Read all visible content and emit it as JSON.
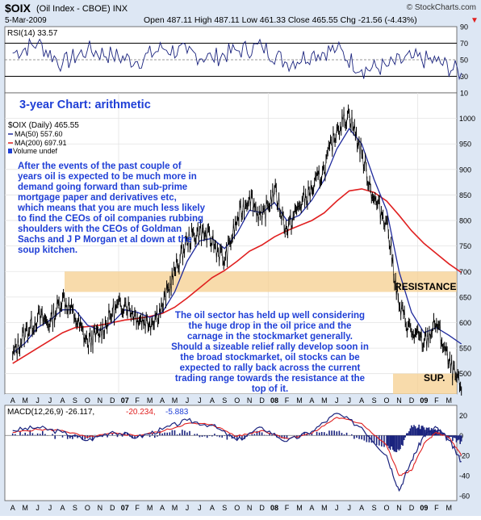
{
  "header": {
    "symbol": "$OIX",
    "symbol_desc": "(Oil Index - CBOE) INX",
    "brand": "© StockCharts.com",
    "date": "5-Mar-2009",
    "ohlc": "Open 487.11  High 487.11  Low 461.33  Close 465.55  Chg -21.56 (-4.43%)",
    "change_arrow": "▼"
  },
  "rsi_panel": {
    "label": "RSI(14) 33.57",
    "ticks": [
      "90",
      "70",
      "50",
      "30",
      "10"
    ]
  },
  "title": "3-year Chart: arithmetic",
  "price_legend": {
    "line1": "$OIX (Daily) 465.55",
    "line2": "MA(50) 557.60",
    "line3": "MA(200) 697.91",
    "line4": "Volume undef"
  },
  "annotations": {
    "note1": "After the events of the past couple of years oil is expected to be much more in demand going forward than sub-prime mortgage paper and derivatives etc, which means that you are much less likely to find the CEOs of oil companies rubbing shoulders with the CEOs of Goldman Sachs and J P Morgan et al down at the soup kitchen.",
    "note2": "The oil sector has held up well considering the huge drop in the oil price and the carnage in the stockmarket generally. Should a sizeable relief rally develop soon in the broad stockmarket, oil stocks can be expected to rally back across the current trading range towards the resistance at the top of it.",
    "resistance": "RESISTANCE",
    "support": "SUP."
  },
  "macd_panel": {
    "label_main": "MACD(12,26,9) -26.117,",
    "label_signal": "-20.234,",
    "label_hist": "-5.883",
    "ticks": [
      "20",
      "0",
      "-20",
      "-40",
      "-60"
    ]
  },
  "x_axis": {
    "labels": [
      "A",
      "M",
      "J",
      "J",
      "A",
      "S",
      "O",
      "N",
      "D",
      "07",
      "F",
      "M",
      "A",
      "M",
      "J",
      "J",
      "A",
      "S",
      "O",
      "N",
      "D",
      "08",
      "F",
      "M",
      "A",
      "M",
      "J",
      "J",
      "A",
      "S",
      "O",
      "N",
      "D",
      "09",
      "F",
      "M"
    ]
  },
  "chart_data": [
    {
      "type": "line",
      "title": "RSI(14) 33.57",
      "ylim": [
        10,
        90
      ],
      "reference_lines": [
        30,
        70
      ],
      "x": [
        "2006-03",
        "2006-05",
        "2006-07",
        "2006-09",
        "2006-11",
        "2007-01",
        "2007-03",
        "2007-05",
        "2007-07",
        "2007-09",
        "2007-11",
        "2008-01",
        "2008-03",
        "2008-05",
        "2008-07",
        "2008-09",
        "2008-11",
        "2009-01",
        "2009-03"
      ],
      "series": [
        {
          "values": [
            58,
            70,
            45,
            62,
            55,
            48,
            64,
            58,
            52,
            61,
            66,
            46,
            57,
            63,
            38,
            42,
            52,
            48,
            34
          ]
        }
      ]
    },
    {
      "type": "line",
      "title": "$OIX (Daily) 465.55",
      "ylim": [
        460,
        1050
      ],
      "x": [
        "2006-03",
        "2006-04",
        "2006-05",
        "2006-06",
        "2006-07",
        "2006-08",
        "2006-09",
        "2006-10",
        "2006-11",
        "2006-12",
        "2007-01",
        "2007-02",
        "2007-03",
        "2007-04",
        "2007-05",
        "2007-06",
        "2007-07",
        "2007-08",
        "2007-09",
        "2007-10",
        "2007-11",
        "2007-12",
        "2008-01",
        "2008-02",
        "2008-03",
        "2008-04",
        "2008-05",
        "2008-06",
        "2008-07",
        "2008-08",
        "2008-09",
        "2008-10",
        "2008-11",
        "2008-12",
        "2009-01",
        "2009-02",
        "2009-03"
      ],
      "series": [
        {
          "name": "$OIX (Daily) 465.55",
          "values": [
            535,
            580,
            610,
            600,
            650,
            610,
            560,
            580,
            620,
            640,
            610,
            600,
            630,
            700,
            760,
            780,
            760,
            720,
            800,
            850,
            800,
            860,
            780,
            830,
            860,
            900,
            980,
            1010,
            930,
            840,
            800,
            630,
            580,
            560,
            600,
            520,
            466
          ]
        },
        {
          "name": "MA(50) 557.60",
          "values": [
            540,
            560,
            590,
            605,
            625,
            625,
            595,
            585,
            600,
            625,
            620,
            610,
            620,
            660,
            720,
            760,
            765,
            745,
            775,
            820,
            815,
            835,
            800,
            810,
            840,
            880,
            940,
            980,
            950,
            880,
            820,
            700,
            620,
            580,
            590,
            575,
            558
          ]
        },
        {
          "name": "MA(200) 697.91",
          "values": [
            520,
            535,
            550,
            565,
            580,
            590,
            592,
            595,
            600,
            605,
            608,
            612,
            618,
            630,
            648,
            668,
            688,
            702,
            720,
            740,
            752,
            768,
            780,
            790,
            800,
            815,
            838,
            858,
            862,
            855,
            838,
            810,
            780,
            755,
            735,
            715,
            698
          ]
        }
      ],
      "bands": [
        {
          "label": "RESISTANCE",
          "range": [
            660,
            700
          ]
        },
        {
          "label": "SUP.",
          "range": [
            460,
            500
          ]
        }
      ]
    },
    {
      "type": "line",
      "title": "MACD(12,26,9) -26.117, -20.234, -5.883",
      "ylim": [
        -65,
        30
      ],
      "x": [
        "2006-03",
        "2006-05",
        "2006-07",
        "2006-09",
        "2006-11",
        "2007-01",
        "2007-03",
        "2007-05",
        "2007-07",
        "2007-09",
        "2007-11",
        "2008-01",
        "2008-03",
        "2008-05",
        "2008-07",
        "2008-09",
        "2008-10",
        "2008-11",
        "2008-12",
        "2009-01",
        "2009-02",
        "2009-03"
      ],
      "series": [
        {
          "name": "MACD",
          "values": [
            5,
            8,
            3,
            -5,
            4,
            -2,
            6,
            15,
            10,
            -5,
            8,
            -6,
            4,
            22,
            8,
            -20,
            -55,
            -25,
            0,
            8,
            -5,
            -26
          ]
        },
        {
          "name": "Signal",
          "values": [
            3,
            6,
            5,
            -2,
            2,
            0,
            4,
            12,
            11,
            -1,
            5,
            -3,
            2,
            18,
            12,
            -10,
            -40,
            -35,
            -8,
            3,
            -2,
            -20
          ]
        }
      ]
    }
  ],
  "colors": {
    "panel_bg": "#ffffff",
    "frame_bg": "#dde7f4",
    "price": "#000000",
    "ma50": "#1f2a9c",
    "ma200": "#e02020",
    "note_text": "#1f3fd6",
    "title_text": "#1f3fd6",
    "band": "#f6cf8f",
    "macd_line": "#1a237e",
    "signal_line": "#e02020",
    "histogram": "#1a237e"
  }
}
